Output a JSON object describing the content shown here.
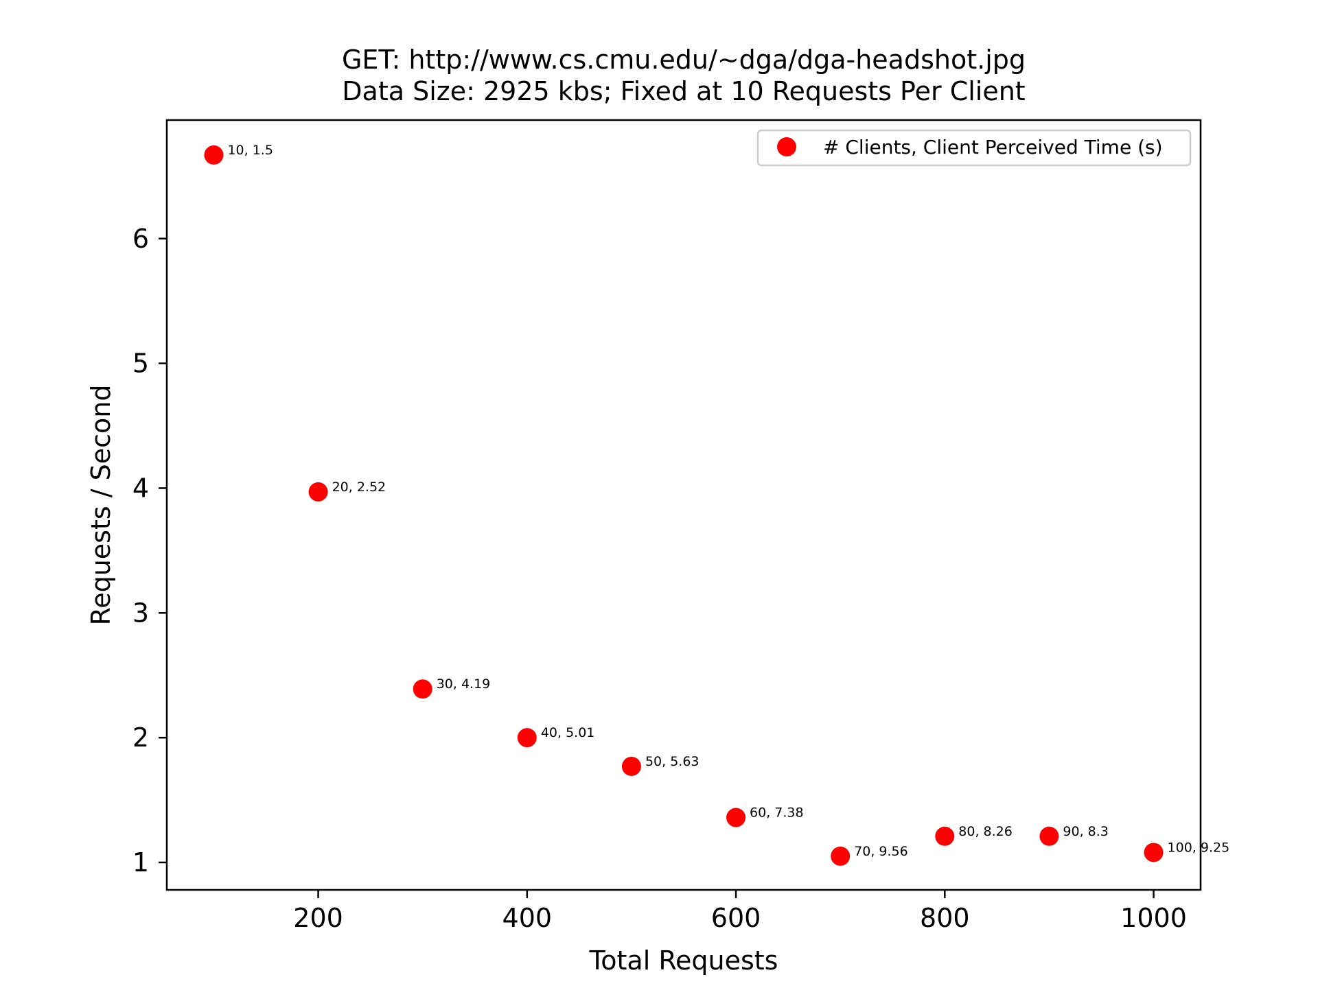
{
  "chart_data": {
    "type": "scatter",
    "title": "GET: http://www.cs.cmu.edu/~dga/dga-headshot.jpg",
    "subtitle": "Data Size: 2925 kbs; Fixed at 10 Requests Per Client",
    "xlabel": "Total Requests",
    "ylabel": "Requests / Second",
    "xlim": [
      55,
      1045
    ],
    "ylim": [
      0.78,
      6.95
    ],
    "xticks": [
      200,
      400,
      600,
      800,
      1000
    ],
    "yticks": [
      1,
      2,
      3,
      4,
      5,
      6
    ],
    "grid": false,
    "legend_position": "top-right",
    "series": [
      {
        "name": "# Clients, Client Perceived Time (s)",
        "color": "#ff0000",
        "points": [
          {
            "x": 100,
            "y": 6.67,
            "label": "10, 1.5"
          },
          {
            "x": 200,
            "y": 3.97,
            "label": "20, 2.52"
          },
          {
            "x": 300,
            "y": 2.39,
            "label": "30, 4.19"
          },
          {
            "x": 400,
            "y": 2.0,
            "label": "40, 5.01"
          },
          {
            "x": 500,
            "y": 1.77,
            "label": "50, 5.63"
          },
          {
            "x": 600,
            "y": 1.36,
            "label": "60, 7.38"
          },
          {
            "x": 700,
            "y": 1.05,
            "label": "70, 9.56"
          },
          {
            "x": 800,
            "y": 1.21,
            "label": "80, 8.26"
          },
          {
            "x": 900,
            "y": 1.21,
            "label": "90, 8.3"
          },
          {
            "x": 1000,
            "y": 1.08,
            "label": "100, 9.25"
          }
        ]
      }
    ]
  }
}
